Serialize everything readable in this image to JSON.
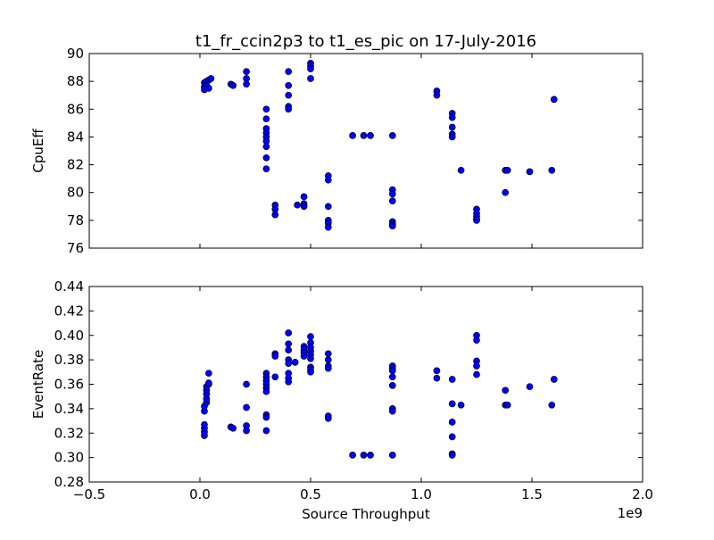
{
  "chart_data": [
    {
      "type": "scatter",
      "title": "t1_fr_ccin2p3 to t1_es_pic on 17-July-2016",
      "xlabel": "",
      "ylabel": "CpuEff",
      "xlim": [
        -0.5,
        2.0
      ],
      "ylim": [
        76,
        90
      ],
      "yticks": [
        "76",
        "78",
        "80",
        "82",
        "84",
        "86",
        "88",
        "90"
      ],
      "marker_color": "#0000ff",
      "points": [
        [
          0.02,
          87.9
        ],
        [
          0.02,
          87.6
        ],
        [
          0.02,
          87.4
        ],
        [
          0.03,
          88.0
        ],
        [
          0.03,
          87.7
        ],
        [
          0.04,
          88.1
        ],
        [
          0.04,
          87.5
        ],
        [
          0.05,
          88.2
        ],
        [
          0.14,
          87.8
        ],
        [
          0.15,
          87.7
        ],
        [
          0.21,
          88.7
        ],
        [
          0.21,
          88.2
        ],
        [
          0.21,
          87.8
        ],
        [
          0.3,
          86.0
        ],
        [
          0.3,
          85.3
        ],
        [
          0.3,
          84.6
        ],
        [
          0.3,
          84.3
        ],
        [
          0.3,
          84.0
        ],
        [
          0.3,
          83.7
        ],
        [
          0.3,
          83.3
        ],
        [
          0.3,
          82.5
        ],
        [
          0.3,
          81.7
        ],
        [
          0.34,
          79.1
        ],
        [
          0.34,
          78.8
        ],
        [
          0.34,
          78.4
        ],
        [
          0.4,
          88.7
        ],
        [
          0.4,
          87.7
        ],
        [
          0.4,
          87.0
        ],
        [
          0.4,
          86.2
        ],
        [
          0.4,
          86.0
        ],
        [
          0.44,
          79.1
        ],
        [
          0.47,
          79.7
        ],
        [
          0.47,
          79.2
        ],
        [
          0.47,
          79.0
        ],
        [
          0.5,
          89.3
        ],
        [
          0.5,
          89.1
        ],
        [
          0.5,
          88.9
        ],
        [
          0.5,
          88.2
        ],
        [
          0.58,
          81.2
        ],
        [
          0.58,
          80.9
        ],
        [
          0.58,
          79.0
        ],
        [
          0.58,
          78.0
        ],
        [
          0.58,
          77.8
        ],
        [
          0.58,
          77.5
        ],
        [
          0.69,
          84.1
        ],
        [
          0.74,
          84.1
        ],
        [
          0.77,
          84.1
        ],
        [
          0.87,
          84.1
        ],
        [
          0.87,
          80.2
        ],
        [
          0.87,
          79.9
        ],
        [
          0.87,
          79.4
        ],
        [
          0.87,
          77.9
        ],
        [
          0.87,
          77.7
        ],
        [
          0.87,
          77.6
        ],
        [
          1.07,
          87.3
        ],
        [
          1.07,
          87.0
        ],
        [
          1.14,
          85.7
        ],
        [
          1.14,
          85.4
        ],
        [
          1.14,
          84.7
        ],
        [
          1.14,
          84.2
        ],
        [
          1.14,
          84.0
        ],
        [
          1.18,
          81.6
        ],
        [
          1.25,
          78.8
        ],
        [
          1.25,
          78.5
        ],
        [
          1.25,
          78.3
        ],
        [
          1.25,
          78.1
        ],
        [
          1.25,
          78.0
        ],
        [
          1.38,
          81.6
        ],
        [
          1.39,
          81.6
        ],
        [
          1.38,
          80.0
        ],
        [
          1.49,
          81.5
        ],
        [
          1.59,
          81.6
        ],
        [
          1.6,
          86.7
        ]
      ]
    },
    {
      "type": "scatter",
      "xlabel": "Source Throughput",
      "ylabel": "EventRate",
      "xlim": [
        -0.5,
        2.0
      ],
      "ylim": [
        0.28,
        0.44
      ],
      "xticks": [
        "−0.5",
        "0.0",
        "0.5",
        "1.0",
        "1.5",
        "2.0"
      ],
      "yticks": [
        "0.28",
        "0.30",
        "0.32",
        "0.34",
        "0.36",
        "0.38",
        "0.40",
        "0.42",
        "0.44"
      ],
      "x_multiplier": "1e9",
      "marker_color": "#0000ff",
      "points": [
        [
          0.02,
          0.318
        ],
        [
          0.02,
          0.321
        ],
        [
          0.02,
          0.324
        ],
        [
          0.02,
          0.327
        ],
        [
          0.02,
          0.338
        ],
        [
          0.02,
          0.342
        ],
        [
          0.03,
          0.345
        ],
        [
          0.03,
          0.348
        ],
        [
          0.03,
          0.352
        ],
        [
          0.03,
          0.355
        ],
        [
          0.03,
          0.358
        ],
        [
          0.04,
          0.36
        ],
        [
          0.04,
          0.361
        ],
        [
          0.04,
          0.369
        ],
        [
          0.14,
          0.325
        ],
        [
          0.15,
          0.324
        ],
        [
          0.21,
          0.36
        ],
        [
          0.21,
          0.341
        ],
        [
          0.21,
          0.326
        ],
        [
          0.21,
          0.322
        ],
        [
          0.3,
          0.369
        ],
        [
          0.3,
          0.366
        ],
        [
          0.3,
          0.363
        ],
        [
          0.3,
          0.36
        ],
        [
          0.3,
          0.357
        ],
        [
          0.3,
          0.354
        ],
        [
          0.3,
          0.335
        ],
        [
          0.3,
          0.333
        ],
        [
          0.3,
          0.322
        ],
        [
          0.34,
          0.385
        ],
        [
          0.34,
          0.383
        ],
        [
          0.34,
          0.366
        ],
        [
          0.4,
          0.402
        ],
        [
          0.4,
          0.393
        ],
        [
          0.4,
          0.388
        ],
        [
          0.4,
          0.38
        ],
        [
          0.4,
          0.377
        ],
        [
          0.4,
          0.369
        ],
        [
          0.4,
          0.365
        ],
        [
          0.4,
          0.362
        ],
        [
          0.43,
          0.378
        ],
        [
          0.47,
          0.391
        ],
        [
          0.47,
          0.388
        ],
        [
          0.47,
          0.386
        ],
        [
          0.47,
          0.383
        ],
        [
          0.5,
          0.399
        ],
        [
          0.5,
          0.394
        ],
        [
          0.5,
          0.39
        ],
        [
          0.5,
          0.387
        ],
        [
          0.5,
          0.384
        ],
        [
          0.5,
          0.381
        ],
        [
          0.5,
          0.374
        ],
        [
          0.5,
          0.372
        ],
        [
          0.5,
          0.37
        ],
        [
          0.58,
          0.385
        ],
        [
          0.58,
          0.38
        ],
        [
          0.58,
          0.375
        ],
        [
          0.58,
          0.373
        ],
        [
          0.58,
          0.334
        ],
        [
          0.58,
          0.332
        ],
        [
          0.69,
          0.302
        ],
        [
          0.74,
          0.302
        ],
        [
          0.77,
          0.302
        ],
        [
          0.87,
          0.375
        ],
        [
          0.87,
          0.373
        ],
        [
          0.87,
          0.371
        ],
        [
          0.87,
          0.366
        ],
        [
          0.87,
          0.359
        ],
        [
          0.87,
          0.34
        ],
        [
          0.87,
          0.338
        ],
        [
          0.87,
          0.302
        ],
        [
          1.07,
          0.371
        ],
        [
          1.07,
          0.365
        ],
        [
          1.14,
          0.364
        ],
        [
          1.14,
          0.344
        ],
        [
          1.14,
          0.329
        ],
        [
          1.14,
          0.317
        ],
        [
          1.14,
          0.303
        ],
        [
          1.14,
          0.302
        ],
        [
          1.18,
          0.343
        ],
        [
          1.25,
          0.4
        ],
        [
          1.25,
          0.396
        ],
        [
          1.25,
          0.379
        ],
        [
          1.25,
          0.375
        ],
        [
          1.25,
          0.368
        ],
        [
          1.38,
          0.355
        ],
        [
          1.38,
          0.343
        ],
        [
          1.39,
          0.343
        ],
        [
          1.49,
          0.358
        ],
        [
          1.59,
          0.343
        ],
        [
          1.6,
          0.364
        ]
      ]
    }
  ]
}
